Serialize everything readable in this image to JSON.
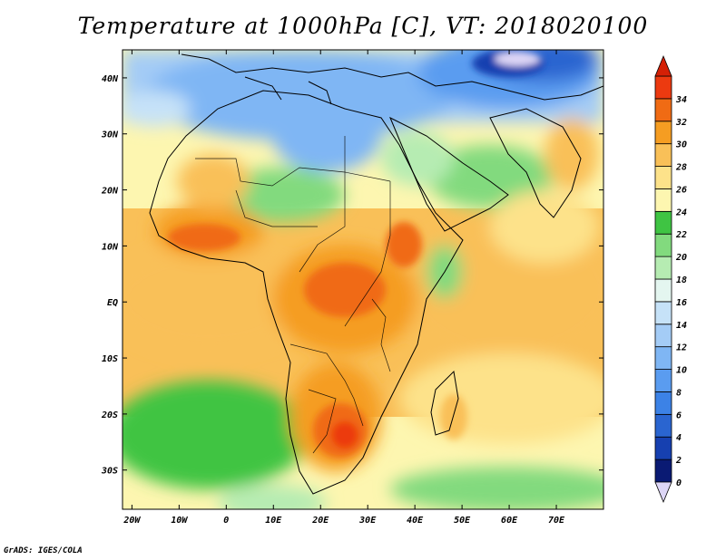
{
  "title": "Temperature at 1000hPa [C], VT: 2018020100",
  "credit": "GrADS: IGES/COLA",
  "map": {
    "lon_range": [
      -22,
      80
    ],
    "lat_range": [
      -37,
      45
    ],
    "lon_ticks": [
      {
        "value": -20,
        "label": "20W"
      },
      {
        "value": -10,
        "label": "10W"
      },
      {
        "value": 0,
        "label": "0"
      },
      {
        "value": 10,
        "label": "10E"
      },
      {
        "value": 20,
        "label": "20E"
      },
      {
        "value": 30,
        "label": "30E"
      },
      {
        "value": 40,
        "label": "40E"
      },
      {
        "value": 50,
        "label": "50E"
      },
      {
        "value": 60,
        "label": "60E"
      },
      {
        "value": 70,
        "label": "70E"
      }
    ],
    "lat_ticks": [
      {
        "value": 40,
        "label": "40N"
      },
      {
        "value": 30,
        "label": "30N"
      },
      {
        "value": 20,
        "label": "20N"
      },
      {
        "value": 10,
        "label": "10N"
      },
      {
        "value": 0,
        "label": "EQ"
      },
      {
        "value": -10,
        "label": "10S"
      },
      {
        "value": -20,
        "label": "20S"
      },
      {
        "value": -30,
        "label": "30S"
      }
    ]
  },
  "colorbar": {
    "levels": [
      "0",
      "2",
      "4",
      "6",
      "8",
      "10",
      "12",
      "14",
      "16",
      "18",
      "20",
      "22",
      "24",
      "26",
      "28",
      "30",
      "32",
      "34"
    ],
    "colors": [
      "#0a1a73",
      "#1640b0",
      "#2a65d0",
      "#3c82e6",
      "#5a9cf0",
      "#7fb6f4",
      "#a4ccf6",
      "#c6e2f8",
      "#e4f6f0",
      "#b6ecb2",
      "#82da7e",
      "#3fc443",
      "#fdf6b0",
      "#fde28a",
      "#f9c058",
      "#f59d22",
      "#f06b14",
      "#ec3a10"
    ],
    "under_color": "#ddd6f6",
    "over_color": "#d42006"
  }
}
